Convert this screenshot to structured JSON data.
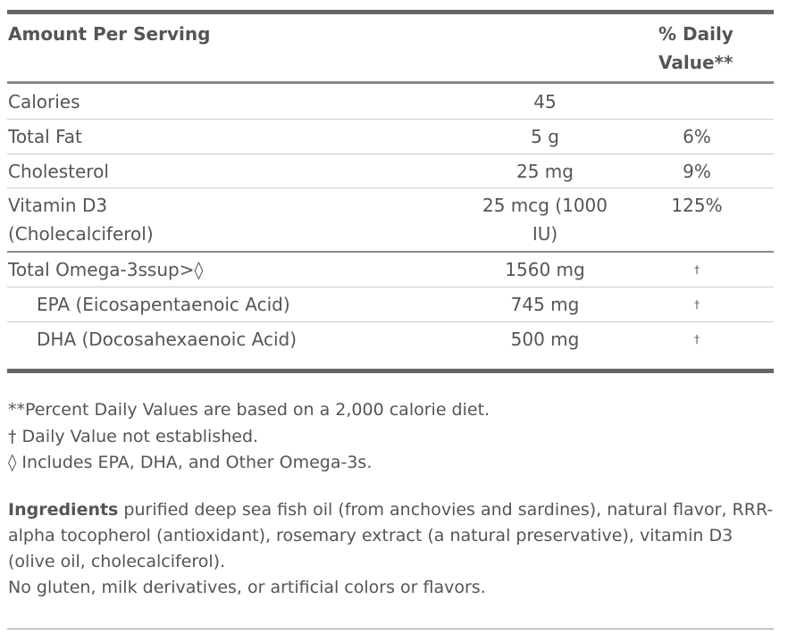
{
  "table": {
    "header": {
      "amount": "Amount Per Serving",
      "dv": "% Daily Value**"
    },
    "rows": [
      {
        "name": "Calories",
        "amount": "45"
      },
      {
        "name": "Total Fat",
        "amount": "5 g",
        "dv": "6%"
      },
      {
        "name": "Cholesterol",
        "amount": "25 mg",
        "dv": "9%"
      },
      {
        "name": "Vitamin D3 (Cholecalciferol)",
        "amount": "25 mcg (1000 IU)",
        "dv": "125%"
      },
      {
        "name": "Total Omega-3ssup>◊",
        "amount": "1560 mg",
        "dv": "†"
      },
      {
        "name": "EPA (Eicosapentaenoic Acid)",
        "amount": "745 mg",
        "dv": "†"
      },
      {
        "name": "DHA (Docosahexaenoic Acid)",
        "amount": "500 mg",
        "dv": "†"
      }
    ]
  },
  "footnotes": [
    "**Percent Daily Values are based on a 2,000 calorie diet.",
    "† Daily Value not established.",
    "◊ Includes EPA, DHA, and Other Omega-3s."
  ],
  "ingredients": {
    "label": "Ingredients",
    "text": "purified deep sea fish oil (from anchovies and sardines), natural flavor, RRR-alpha tocopherol (antioxidant), rosemary extract (a natural preservative), vitamin D3 (olive oil, cholecalciferol).",
    "note": "No gluten, milk derivatives, or artificial colors or flavors."
  }
}
